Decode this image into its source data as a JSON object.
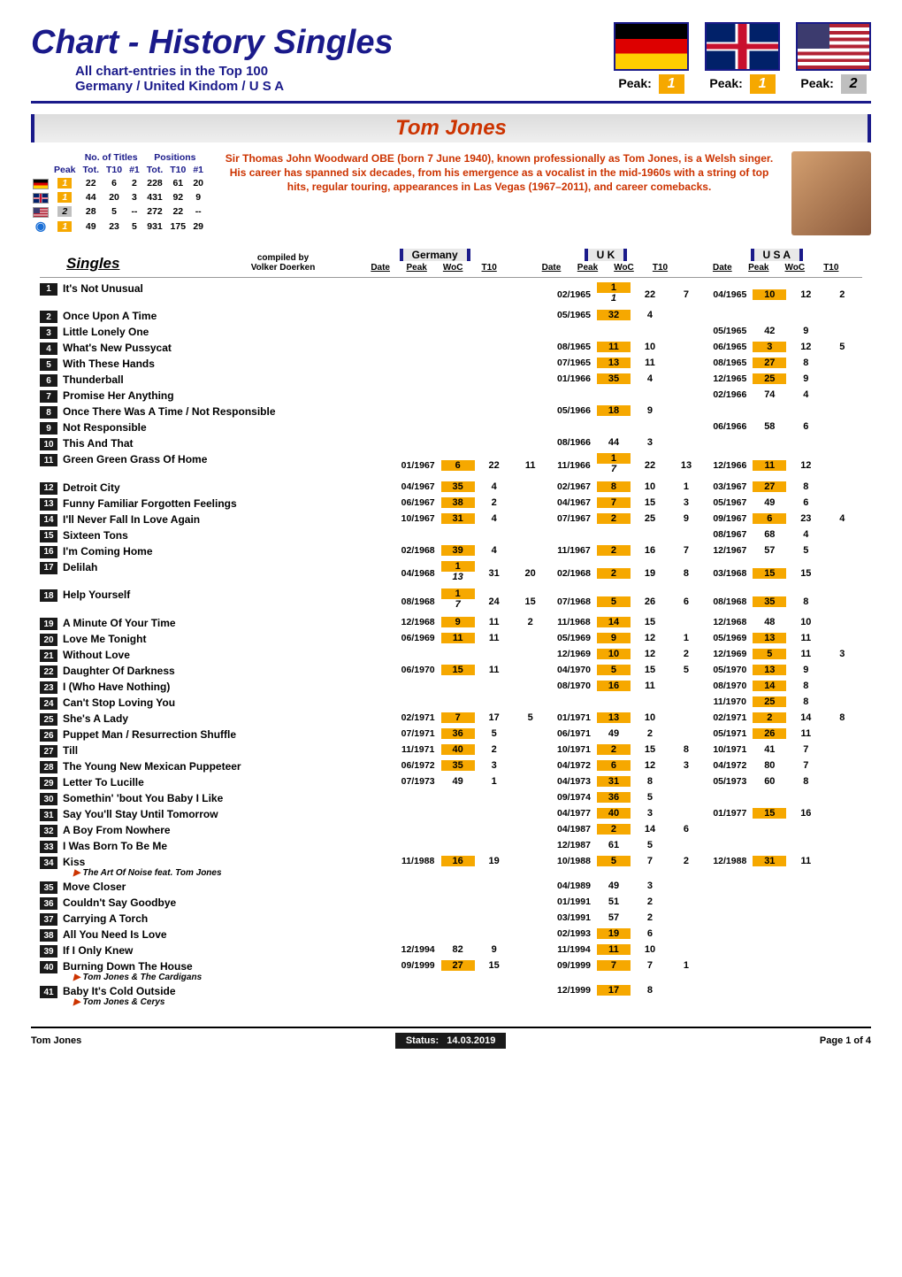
{
  "header": {
    "title": "Chart - History Singles",
    "subtitle1": "All chart-entries in the Top 100",
    "subtitle2": "Germany / United Kindom / U S A",
    "peaks": [
      {
        "country": "de",
        "label": "Peak:",
        "value": "1",
        "hl": true
      },
      {
        "country": "uk",
        "label": "Peak:",
        "value": "1",
        "hl": true
      },
      {
        "country": "us",
        "label": "Peak:",
        "value": "2",
        "hl": false
      }
    ]
  },
  "artist": "Tom Jones",
  "stats": {
    "heading_groups": [
      "No. of Titles",
      "Positions"
    ],
    "cols": [
      "Peak",
      "Tot.",
      "T10",
      "#1",
      "Tot.",
      "T10",
      "#1"
    ],
    "rows": [
      {
        "flag": "de",
        "peak": "1",
        "hl": true,
        "tot": "22",
        "t10": "6",
        "n1": "2",
        "ptot": "228",
        "pt10": "61",
        "pn1": "20"
      },
      {
        "flag": "uk",
        "peak": "1",
        "hl": true,
        "tot": "44",
        "t10": "20",
        "n1": "3",
        "ptot": "431",
        "pt10": "92",
        "pn1": "9"
      },
      {
        "flag": "us",
        "peak": "2",
        "hl": false,
        "tot": "28",
        "t10": "5",
        "n1": "--",
        "ptot": "272",
        "pt10": "22",
        "pn1": "--"
      },
      {
        "flag": "sum",
        "peak": "1",
        "hl": true,
        "tot": "49",
        "t10": "23",
        "n1": "5",
        "ptot": "931",
        "pt10": "175",
        "pn1": "29"
      }
    ]
  },
  "bio": "Sir Thomas John Woodward OBE (born 7 June 1940), known professionally as Tom Jones, is a Welsh singer. His career has spanned six decades, from his emergence as a vocalist in the mid-1960s with a string of top hits, regular touring, appearances in Las Vegas (1967–2011), and career comebacks.",
  "table": {
    "singles_label": "Singles",
    "compiled_by_label": "compiled by",
    "compiled_by_name": "Volker Doerken",
    "countries": [
      "Germany",
      "U K",
      "U S A"
    ],
    "col_labels": [
      "Date",
      "Peak",
      "WoC",
      "T10"
    ]
  },
  "rows": [
    {
      "n": 1,
      "title": "It's Not Unusual",
      "de": {},
      "uk": {
        "date": "02/1965",
        "peak": "1",
        "sup": "1",
        "woc": "22",
        "t10": "7",
        "hl": true
      },
      "us": {
        "date": "04/1965",
        "peak": "10",
        "woc": "12",
        "t10": "2",
        "hl": true
      }
    },
    {
      "n": 2,
      "title": "Once Upon A Time",
      "de": {},
      "uk": {
        "date": "05/1965",
        "peak": "32",
        "woc": "4",
        "hl": true
      },
      "us": {}
    },
    {
      "n": 3,
      "title": "Little Lonely One",
      "de": {},
      "uk": {},
      "us": {
        "date": "05/1965",
        "peak": "42",
        "woc": "9"
      }
    },
    {
      "n": 4,
      "title": "What's New Pussycat",
      "de": {},
      "uk": {
        "date": "08/1965",
        "peak": "11",
        "woc": "10",
        "hl": true
      },
      "us": {
        "date": "06/1965",
        "peak": "3",
        "woc": "12",
        "t10": "5",
        "hl": true
      }
    },
    {
      "n": 5,
      "title": "With These Hands",
      "de": {},
      "uk": {
        "date": "07/1965",
        "peak": "13",
        "woc": "11",
        "hl": true
      },
      "us": {
        "date": "08/1965",
        "peak": "27",
        "woc": "8",
        "hl": true
      }
    },
    {
      "n": 6,
      "title": "Thunderball",
      "de": {},
      "uk": {
        "date": "01/1966",
        "peak": "35",
        "woc": "4",
        "hl": true
      },
      "us": {
        "date": "12/1965",
        "peak": "25",
        "woc": "9",
        "hl": true
      }
    },
    {
      "n": 7,
      "title": "Promise Her Anything",
      "de": {},
      "uk": {},
      "us": {
        "date": "02/1966",
        "peak": "74",
        "woc": "4"
      }
    },
    {
      "n": 8,
      "title": "Once There Was A Time / Not Responsible",
      "de": {},
      "uk": {
        "date": "05/1966",
        "peak": "18",
        "woc": "9",
        "hl": true
      },
      "us": {}
    },
    {
      "n": 9,
      "title": "Not Responsible",
      "de": {},
      "uk": {},
      "us": {
        "date": "06/1966",
        "peak": "58",
        "woc": "6"
      }
    },
    {
      "n": 10,
      "title": "This And That",
      "de": {},
      "uk": {
        "date": "08/1966",
        "peak": "44",
        "woc": "3"
      },
      "us": {}
    },
    {
      "n": 11,
      "title": "Green Green Grass Of Home",
      "de": {
        "date": "01/1967",
        "peak": "6",
        "woc": "22",
        "t10": "11",
        "hl": true
      },
      "uk": {
        "date": "11/1966",
        "peak": "1",
        "sup": "7",
        "woc": "22",
        "t10": "13",
        "hl": true
      },
      "us": {
        "date": "12/1966",
        "peak": "11",
        "woc": "12",
        "hl": true
      }
    },
    {
      "n": 12,
      "title": "Detroit City",
      "de": {
        "date": "04/1967",
        "peak": "35",
        "woc": "4",
        "hl": true
      },
      "uk": {
        "date": "02/1967",
        "peak": "8",
        "woc": "10",
        "t10": "1",
        "hl": true
      },
      "us": {
        "date": "03/1967",
        "peak": "27",
        "woc": "8",
        "hl": true
      }
    },
    {
      "n": 13,
      "title": "Funny Familiar Forgotten Feelings",
      "de": {
        "date": "06/1967",
        "peak": "38",
        "woc": "2",
        "hl": true
      },
      "uk": {
        "date": "04/1967",
        "peak": "7",
        "woc": "15",
        "t10": "3",
        "hl": true
      },
      "us": {
        "date": "05/1967",
        "peak": "49",
        "woc": "6"
      }
    },
    {
      "n": 14,
      "title": "I'll Never Fall In Love Again",
      "de": {
        "date": "10/1967",
        "peak": "31",
        "woc": "4",
        "hl": true
      },
      "uk": {
        "date": "07/1967",
        "peak": "2",
        "woc": "25",
        "t10": "9",
        "hl": true
      },
      "us": {
        "date": "09/1967",
        "peak": "6",
        "woc": "23",
        "t10": "4",
        "hl": true
      }
    },
    {
      "n": 15,
      "title": "Sixteen Tons",
      "de": {},
      "uk": {},
      "us": {
        "date": "08/1967",
        "peak": "68",
        "woc": "4"
      }
    },
    {
      "n": 16,
      "title": "I'm Coming Home",
      "de": {
        "date": "02/1968",
        "peak": "39",
        "woc": "4",
        "hl": true
      },
      "uk": {
        "date": "11/1967",
        "peak": "2",
        "woc": "16",
        "t10": "7",
        "hl": true
      },
      "us": {
        "date": "12/1967",
        "peak": "57",
        "woc": "5"
      }
    },
    {
      "n": 17,
      "title": "Delilah",
      "de": {
        "date": "04/1968",
        "peak": "1",
        "sup": "13",
        "woc": "31",
        "t10": "20",
        "hl": true
      },
      "uk": {
        "date": "02/1968",
        "peak": "2",
        "woc": "19",
        "t10": "8",
        "hl": true
      },
      "us": {
        "date": "03/1968",
        "peak": "15",
        "woc": "15",
        "hl": true
      }
    },
    {
      "n": 18,
      "title": "Help Yourself",
      "de": {
        "date": "08/1968",
        "peak": "1",
        "sup": "7",
        "woc": "24",
        "t10": "15",
        "hl": true
      },
      "uk": {
        "date": "07/1968",
        "peak": "5",
        "woc": "26",
        "t10": "6",
        "hl": true
      },
      "us": {
        "date": "08/1968",
        "peak": "35",
        "woc": "8",
        "hl": true
      }
    },
    {
      "n": 19,
      "title": "A Minute Of Your Time",
      "de": {
        "date": "12/1968",
        "peak": "9",
        "woc": "11",
        "t10": "2",
        "hl": true
      },
      "uk": {
        "date": "11/1968",
        "peak": "14",
        "woc": "15",
        "hl": true
      },
      "us": {
        "date": "12/1968",
        "peak": "48",
        "woc": "10"
      }
    },
    {
      "n": 20,
      "title": "Love Me Tonight",
      "de": {
        "date": "06/1969",
        "peak": "11",
        "woc": "11",
        "hl": true
      },
      "uk": {
        "date": "05/1969",
        "peak": "9",
        "woc": "12",
        "t10": "1",
        "hl": true
      },
      "us": {
        "date": "05/1969",
        "peak": "13",
        "woc": "11",
        "hl": true
      }
    },
    {
      "n": 21,
      "title": "Without Love",
      "de": {},
      "uk": {
        "date": "12/1969",
        "peak": "10",
        "woc": "12",
        "t10": "2",
        "hl": true
      },
      "us": {
        "date": "12/1969",
        "peak": "5",
        "woc": "11",
        "t10": "3",
        "hl": true
      }
    },
    {
      "n": 22,
      "title": "Daughter Of Darkness",
      "de": {
        "date": "06/1970",
        "peak": "15",
        "woc": "11",
        "hl": true
      },
      "uk": {
        "date": "04/1970",
        "peak": "5",
        "woc": "15",
        "t10": "5",
        "hl": true
      },
      "us": {
        "date": "05/1970",
        "peak": "13",
        "woc": "9",
        "hl": true
      }
    },
    {
      "n": 23,
      "title": "I (Who Have Nothing)",
      "de": {},
      "uk": {
        "date": "08/1970",
        "peak": "16",
        "woc": "11",
        "hl": true
      },
      "us": {
        "date": "08/1970",
        "peak": "14",
        "woc": "8",
        "hl": true
      }
    },
    {
      "n": 24,
      "title": "Can't Stop Loving You",
      "de": {},
      "uk": {},
      "us": {
        "date": "11/1970",
        "peak": "25",
        "woc": "8",
        "hl": true
      }
    },
    {
      "n": 25,
      "title": "She's A Lady",
      "de": {
        "date": "02/1971",
        "peak": "7",
        "woc": "17",
        "t10": "5",
        "hl": true
      },
      "uk": {
        "date": "01/1971",
        "peak": "13",
        "woc": "10",
        "hl": true
      },
      "us": {
        "date": "02/1971",
        "peak": "2",
        "woc": "14",
        "t10": "8",
        "hl": true
      }
    },
    {
      "n": 26,
      "title": "Puppet Man / Resurrection Shuffle",
      "de": {
        "date": "07/1971",
        "peak": "36",
        "woc": "5",
        "hl": true
      },
      "uk": {
        "date": "06/1971",
        "peak": "49",
        "woc": "2"
      },
      "us": {
        "date": "05/1971",
        "peak": "26",
        "woc": "11",
        "hl": true
      }
    },
    {
      "n": 27,
      "title": "Till",
      "de": {
        "date": "11/1971",
        "peak": "40",
        "woc": "2",
        "hl": true
      },
      "uk": {
        "date": "10/1971",
        "peak": "2",
        "woc": "15",
        "t10": "8",
        "hl": true
      },
      "us": {
        "date": "10/1971",
        "peak": "41",
        "woc": "7"
      }
    },
    {
      "n": 28,
      "title": "The Young New Mexican Puppeteer",
      "de": {
        "date": "06/1972",
        "peak": "35",
        "woc": "3",
        "hl": true
      },
      "uk": {
        "date": "04/1972",
        "peak": "6",
        "woc": "12",
        "t10": "3",
        "hl": true
      },
      "us": {
        "date": "04/1972",
        "peak": "80",
        "woc": "7"
      }
    },
    {
      "n": 29,
      "title": "Letter To Lucille",
      "de": {
        "date": "07/1973",
        "peak": "49",
        "woc": "1"
      },
      "uk": {
        "date": "04/1973",
        "peak": "31",
        "woc": "8",
        "hl": true
      },
      "us": {
        "date": "05/1973",
        "peak": "60",
        "woc": "8"
      }
    },
    {
      "n": 30,
      "title": "Somethin' 'bout You Baby I Like",
      "de": {},
      "uk": {
        "date": "09/1974",
        "peak": "36",
        "woc": "5",
        "hl": true
      },
      "us": {}
    },
    {
      "n": 31,
      "title": "Say You'll Stay Until Tomorrow",
      "de": {},
      "uk": {
        "date": "04/1977",
        "peak": "40",
        "woc": "3",
        "hl": true
      },
      "us": {
        "date": "01/1977",
        "peak": "15",
        "woc": "16",
        "hl": true
      }
    },
    {
      "n": 32,
      "title": "A Boy From Nowhere",
      "de": {},
      "uk": {
        "date": "04/1987",
        "peak": "2",
        "woc": "14",
        "t10": "6",
        "hl": true
      },
      "us": {}
    },
    {
      "n": 33,
      "title": "I Was Born To Be Me",
      "de": {},
      "uk": {
        "date": "12/1987",
        "peak": "61",
        "woc": "5"
      },
      "us": {}
    },
    {
      "n": 34,
      "title": "Kiss",
      "sub": "The Art Of Noise feat. Tom Jones",
      "de": {
        "date": "11/1988",
        "peak": "16",
        "woc": "19",
        "hl": true
      },
      "uk": {
        "date": "10/1988",
        "peak": "5",
        "woc": "7",
        "t10": "2",
        "hl": true
      },
      "us": {
        "date": "12/1988",
        "peak": "31",
        "woc": "11",
        "hl": true
      }
    },
    {
      "n": 35,
      "title": "Move Closer",
      "de": {},
      "uk": {
        "date": "04/1989",
        "peak": "49",
        "woc": "3"
      },
      "us": {}
    },
    {
      "n": 36,
      "title": "Couldn't Say Goodbye",
      "de": {},
      "uk": {
        "date": "01/1991",
        "peak": "51",
        "woc": "2"
      },
      "us": {}
    },
    {
      "n": 37,
      "title": "Carrying A Torch",
      "de": {},
      "uk": {
        "date": "03/1991",
        "peak": "57",
        "woc": "2"
      },
      "us": {}
    },
    {
      "n": 38,
      "title": "All You Need Is Love",
      "de": {},
      "uk": {
        "date": "02/1993",
        "peak": "19",
        "woc": "6",
        "hl": true
      },
      "us": {}
    },
    {
      "n": 39,
      "title": "If I Only Knew",
      "de": {
        "date": "12/1994",
        "peak": "82",
        "woc": "9"
      },
      "uk": {
        "date": "11/1994",
        "peak": "11",
        "woc": "10",
        "hl": true
      },
      "us": {}
    },
    {
      "n": 40,
      "title": "Burning Down The House",
      "sub": "Tom Jones & The Cardigans",
      "de": {
        "date": "09/1999",
        "peak": "27",
        "woc": "15",
        "hl": true
      },
      "uk": {
        "date": "09/1999",
        "peak": "7",
        "woc": "7",
        "t10": "1",
        "hl": true
      },
      "us": {}
    },
    {
      "n": 41,
      "title": "Baby It's Cold Outside",
      "sub": "Tom Jones & Cerys",
      "de": {},
      "uk": {
        "date": "12/1999",
        "peak": "17",
        "woc": "8",
        "hl": true
      },
      "us": {}
    }
  ],
  "footer": {
    "artist": "Tom Jones",
    "status_label": "Status:",
    "status_date": "14.03.2019",
    "page": "Page 1 of 4"
  }
}
